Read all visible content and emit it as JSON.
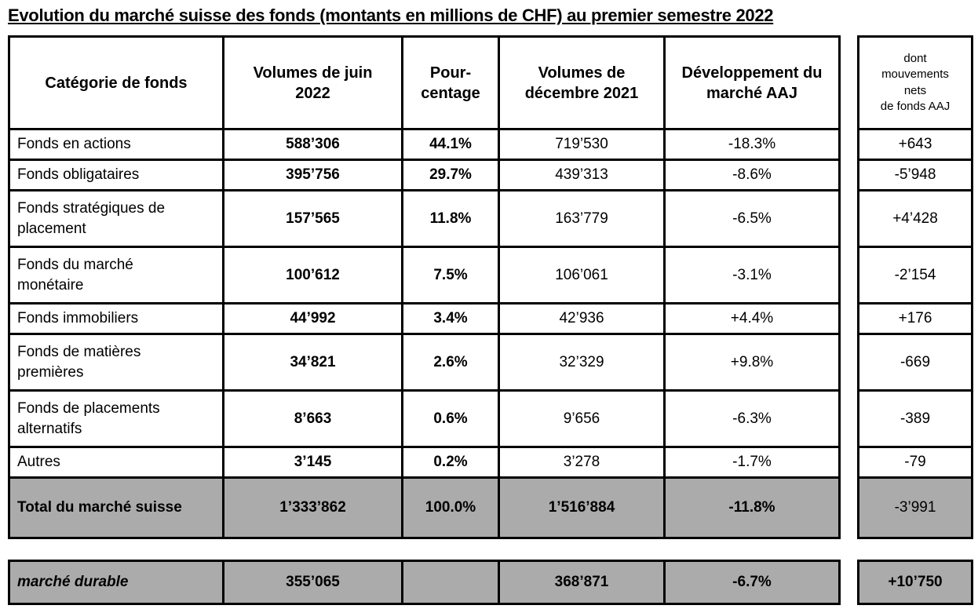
{
  "title": "Evolution du marché suisse des fonds (montants en millions de CHF) au premier semestre 2022",
  "colors": {
    "highlight_gray": "#ABABAB",
    "border": "#000000",
    "background": "#FFFFFF"
  },
  "table": {
    "columns": {
      "category": "Catégorie de fonds",
      "vol_juin": "Volumes de juin\n2022",
      "pct": "Pour-\ncentage",
      "vol_dec": "Volumes de\ndécembre 2021",
      "dev": "Développement du\nmarché AAJ",
      "net": "dont\nmouvements\nnets\nde fonds AAJ"
    },
    "rows": [
      {
        "category": "Fonds en actions",
        "vol_juin": "588’306",
        "pct": "44.1%",
        "vol_dec": "719’530",
        "dev": "-18.3%",
        "net": "+643"
      },
      {
        "category": "Fonds obligataires",
        "vol_juin": "395’756",
        "pct": "29.7%",
        "vol_dec": "439’313",
        "dev": "-8.6%",
        "net": "-5’948"
      },
      {
        "category": "Fonds stratégiques de\nplacement",
        "vol_juin": "157’565",
        "pct": "11.8%",
        "vol_dec": "163’779",
        "dev": "-6.5%",
        "net": "+4’428"
      },
      {
        "category": "Fonds du marché\nmonétaire",
        "vol_juin": "100’612",
        "pct": "7.5%",
        "vol_dec": "106’061",
        "dev": "-3.1%",
        "net": "-2’154"
      },
      {
        "category": "Fonds immobiliers",
        "vol_juin": "44’992",
        "pct": "3.4%",
        "vol_dec": "42’936",
        "dev": "+4.4%",
        "net": "+176"
      },
      {
        "category": "Fonds de matières\npremières",
        "vol_juin": "34’821",
        "pct": "2.6%",
        "vol_dec": "32’329",
        "dev": "+9.8%",
        "net": "-669"
      },
      {
        "category": "Fonds de placements\nalternatifs",
        "vol_juin": "8’663",
        "pct": "0.6%",
        "vol_dec": "9’656",
        "dev": "-6.3%",
        "net": "-389"
      },
      {
        "category": "Autres",
        "vol_juin": "3’145",
        "pct": "0.2%",
        "vol_dec": "3’278",
        "dev": "-1.7%",
        "net": "-79"
      }
    ],
    "total_row": {
      "category": "Total du marché suisse",
      "vol_juin": "1’333’862",
      "pct": "100.0%",
      "vol_dec": "1’516’884",
      "dev": "-11.8%",
      "net": "-3’991"
    },
    "durable_row": {
      "category": "marché durable",
      "vol_juin": "355’065",
      "pct": "",
      "vol_dec": "368’871",
      "dev": "-6.7%",
      "net": "+10’750"
    }
  }
}
